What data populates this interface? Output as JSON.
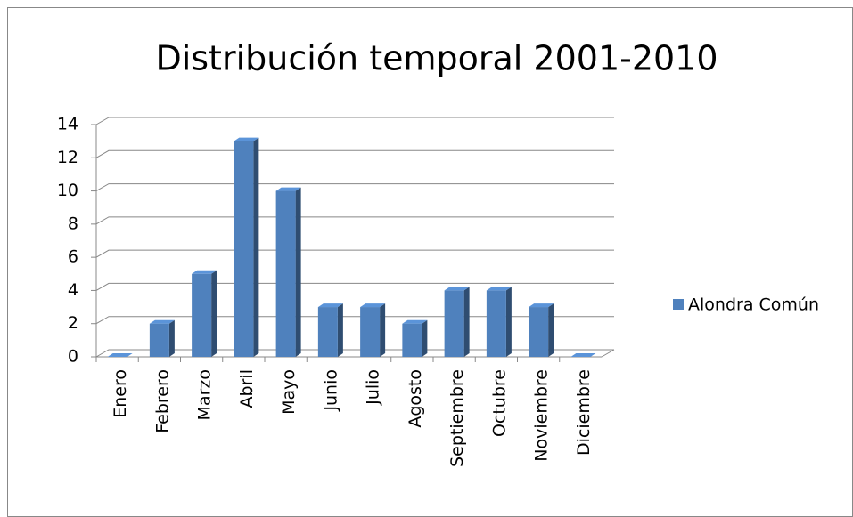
{
  "chart_data": {
    "type": "bar3d",
    "title": "Distribución temporal 2001-2010",
    "categories": [
      "Enero",
      "Febrero",
      "Marzo",
      "Abril",
      "Mayo",
      "Junio",
      "Julio",
      "Agosto",
      "Septiembre",
      "Octubre",
      "Noviembre",
      "Diciembre"
    ],
    "series": [
      {
        "name": "Alondra Común",
        "color": "#4f81bd",
        "values": [
          0,
          2,
          5,
          13,
          10,
          3,
          3,
          2,
          4,
          4,
          3,
          0
        ]
      }
    ],
    "ylim": [
      0,
      14
    ],
    "yticks": [
      0,
      2,
      4,
      6,
      8,
      10,
      12,
      14
    ],
    "grid": true,
    "legend": "right"
  }
}
